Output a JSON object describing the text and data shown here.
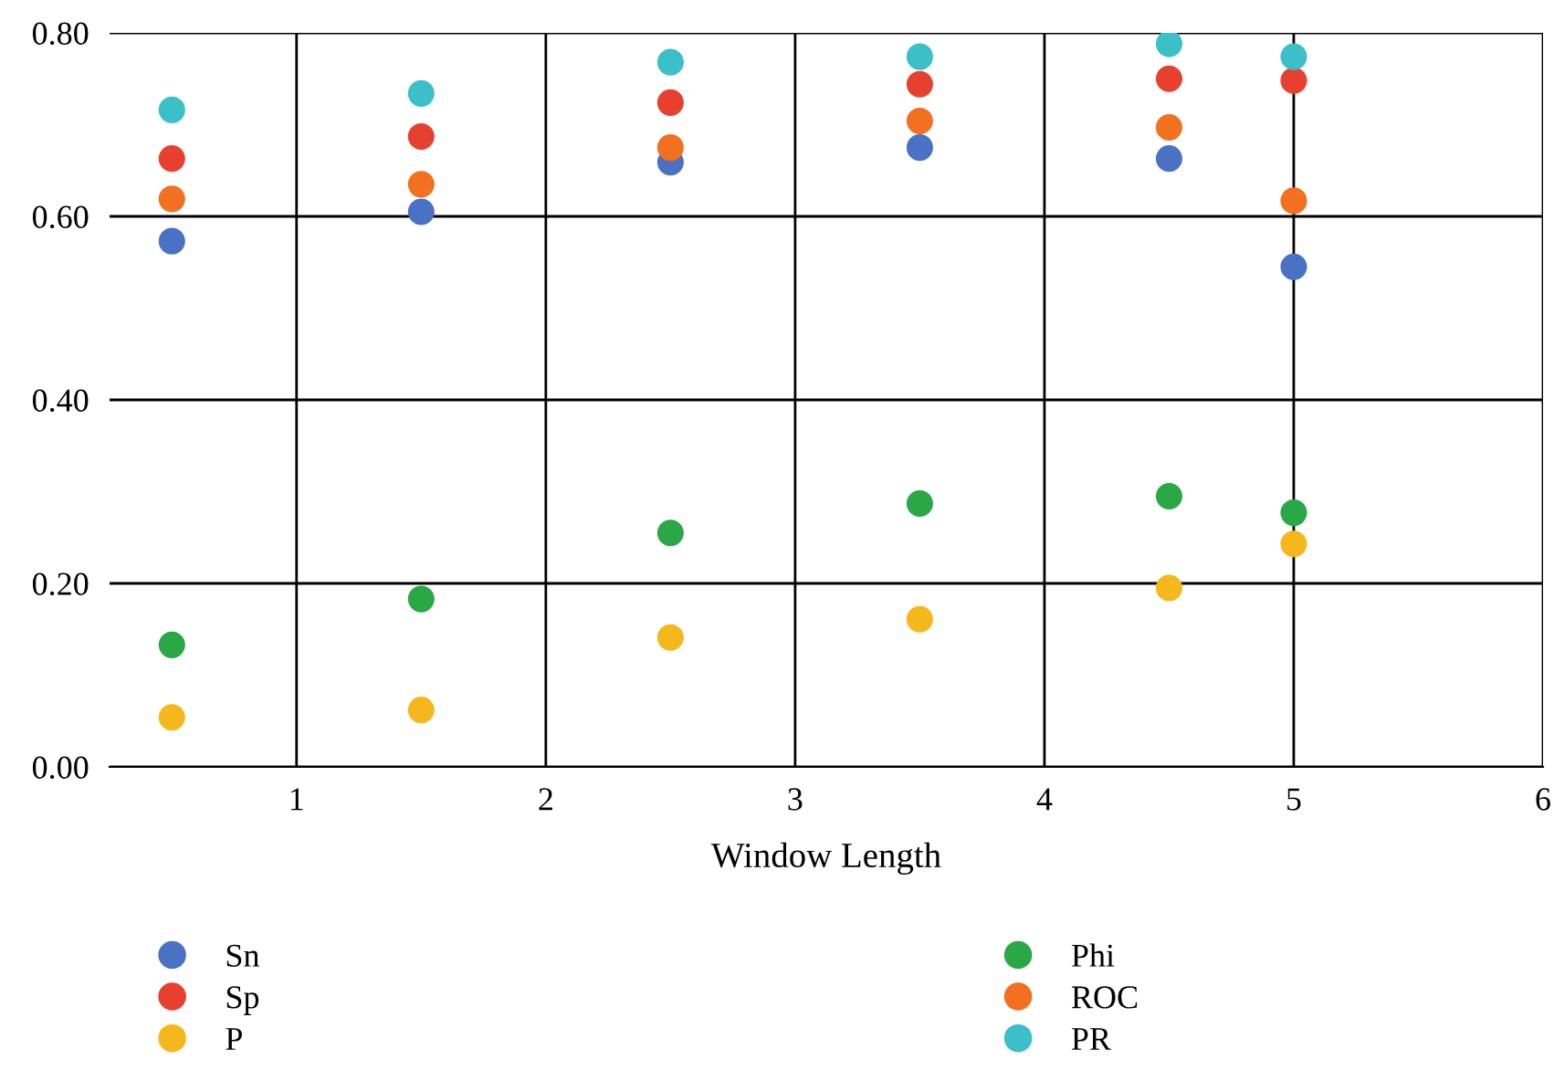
{
  "chart_data": {
    "type": "scatter",
    "xlabel": "Window Length",
    "x": [
      0.5,
      1.5,
      2.5,
      3.5,
      4.5,
      5
    ],
    "series": [
      {
        "name": "Sn",
        "color": "#4a72c4",
        "values": [
          0.573,
          0.605,
          0.659,
          0.675,
          0.663,
          0.545
        ]
      },
      {
        "name": "Sp",
        "color": "#e8402e",
        "values": [
          0.663,
          0.687,
          0.724,
          0.744,
          0.75,
          0.748
        ]
      },
      {
        "name": "P",
        "color": "#f5b81c",
        "values": [
          0.054,
          0.062,
          0.141,
          0.161,
          0.195,
          0.243
        ]
      },
      {
        "name": "Phi",
        "color": "#2aa845",
        "values": [
          0.133,
          0.183,
          0.255,
          0.287,
          0.295,
          0.277
        ]
      },
      {
        "name": "ROC",
        "color": "#f2701f",
        "values": [
          0.619,
          0.635,
          0.675,
          0.704,
          0.697,
          0.617
        ]
      },
      {
        "name": "PR",
        "color": "#3bbfc9",
        "values": [
          0.716,
          0.734,
          0.768,
          0.774,
          0.788,
          0.774
        ]
      }
    ],
    "xlim": [
      0.25,
      6
    ],
    "xticks": [
      1,
      2,
      3,
      4,
      5,
      6
    ],
    "ylim": [
      0,
      0.8
    ],
    "yticks": [
      {
        "value": 0,
        "label": "0.00"
      },
      {
        "value": 0.2,
        "label": "0.20"
      },
      {
        "value": 0.4,
        "label": "0.40"
      },
      {
        "value": 0.6,
        "label": "0.60"
      },
      {
        "value": 0.8,
        "label": "0.80"
      }
    ],
    "grid": true,
    "legend": "bottom",
    "marker": "circle"
  }
}
